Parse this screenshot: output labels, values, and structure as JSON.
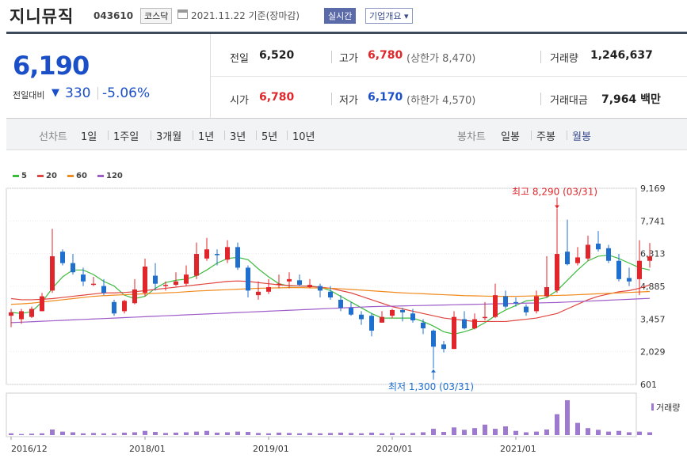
{
  "header": {
    "company": "지니뮤직",
    "code": "043610",
    "market": "코스닥",
    "date_basis": "2021.11.22  기준(장마감)",
    "realtime_button": "실시간",
    "overview_button": "기업개요 ▾"
  },
  "price": {
    "current": "6,190",
    "change_label": "전일대비",
    "change_value": "330",
    "change_pct": "-5.06%",
    "direction_icon": "down-triangle-icon"
  },
  "stats": {
    "prev_close": {
      "label": "전일",
      "value": "6,520"
    },
    "high": {
      "label": "고가",
      "value": "6,780",
      "sub": "(상한가 8,470)"
    },
    "volume": {
      "label": "거래량",
      "value": "1,246,637"
    },
    "open": {
      "label": "시가",
      "value": "6,780"
    },
    "low": {
      "label": "저가",
      "value": "6,170",
      "sub": "(하한가 4,570)"
    },
    "amount": {
      "label": "거래대금",
      "value": "7,964 백만"
    }
  },
  "periods": {
    "line_label": "선차트",
    "line_items": [
      "1일",
      "1주일",
      "3개월",
      "1년",
      "3년",
      "5년",
      "10년"
    ],
    "candle_label": "봉차트",
    "candle_items": [
      "일봉",
      "주봉",
      "월봉"
    ],
    "active_candle": "월봉"
  },
  "colors": {
    "up": "#e0262b",
    "down": "#1f6fcf",
    "ma5": "#3dbb3d",
    "ma20": "#e0453f",
    "ma60": "#f08a1c",
    "ma120": "#9e5cc8",
    "volume": "#9d7ad0"
  },
  "chart_data": {
    "type": "candlestick",
    "interval": "monthly",
    "legend": [
      "5",
      "20",
      "60",
      "120"
    ],
    "y_ticks": [
      "9,169",
      "7,741",
      "6,313",
      "4,885",
      "3,457",
      "2,029",
      "601"
    ],
    "ylim": [
      601,
      9169
    ],
    "x_ticks": [
      "2016/12",
      "2018/01",
      "2019/01",
      "2020/01",
      "2021/01"
    ],
    "volume_label": "거래량",
    "annotations": {
      "max_text": "최고 8,290 (03/31)",
      "max_value": 8290,
      "min_text": "최저 1,300 (03/31)",
      "min_value": 1300
    },
    "candles": [
      [
        3600,
        3750,
        3100,
        3900
      ],
      [
        3450,
        3800,
        3250,
        3900
      ],
      [
        3550,
        3900,
        3500,
        4000
      ],
      [
        3800,
        4450,
        3800,
        4600
      ],
      [
        4700,
        6200,
        4600,
        7400
      ],
      [
        6400,
        5900,
        5800,
        6500
      ],
      [
        5900,
        5500,
        5400,
        6300
      ],
      [
        5400,
        5100,
        4900,
        5700
      ],
      [
        5000,
        5000,
        4900,
        5300
      ],
      [
        4900,
        4600,
        4500,
        5200
      ],
      [
        4200,
        3700,
        3600,
        4300
      ],
      [
        3800,
        4250,
        3700,
        4300
      ],
      [
        4150,
        4750,
        4100,
        5200
      ],
      [
        4600,
        5750,
        4450,
        6100
      ],
      [
        5350,
        5000,
        4700,
        5900
      ],
      [
        4900,
        4950,
        4700,
        5100
      ],
      [
        4950,
        5100,
        4900,
        5500
      ],
      [
        5000,
        5400,
        4900,
        5800
      ],
      [
        5350,
        6300,
        5200,
        6800
      ],
      [
        6100,
        6500,
        6000,
        7000
      ],
      [
        6300,
        6250,
        5800,
        6500
      ],
      [
        6050,
        6600,
        5900,
        6900
      ],
      [
        6600,
        5700,
        5600,
        6800
      ],
      [
        5700,
        4700,
        4400,
        5800
      ],
      [
        4500,
        4650,
        4300,
        5100
      ],
      [
        4650,
        4850,
        4550,
        5200
      ],
      [
        5000,
        5000,
        4800,
        5400
      ],
      [
        5100,
        5200,
        4800,
        5500
      ],
      [
        5150,
        4950,
        4900,
        5400
      ],
      [
        4850,
        4950,
        4800,
        5200
      ],
      [
        4900,
        4700,
        4400,
        5000
      ],
      [
        4650,
        4400,
        4300,
        4900
      ],
      [
        4300,
        3950,
        3800,
        4500
      ],
      [
        3950,
        3650,
        3600,
        4200
      ],
      [
        3650,
        3450,
        3200,
        3800
      ],
      [
        3600,
        2950,
        2700,
        3700
      ],
      [
        3300,
        3550,
        3300,
        3800
      ],
      [
        3600,
        3850,
        3500,
        3900
      ],
      [
        3850,
        3750,
        3350,
        3950
      ],
      [
        3700,
        3400,
        3300,
        3900
      ],
      [
        3300,
        3050,
        2800,
        3450
      ],
      [
        2950,
        2250,
        1300,
        3000
      ],
      [
        2350,
        2150,
        2000,
        2500
      ],
      [
        2150,
        3550,
        2150,
        3800
      ],
      [
        3450,
        3050,
        3000,
        3800
      ],
      [
        3050,
        3450,
        3000,
        3700
      ],
      [
        3500,
        3550,
        3400,
        4200
      ],
      [
        3550,
        4500,
        3500,
        5000
      ],
      [
        4450,
        4000,
        3900,
        4700
      ],
      [
        4200,
        4150,
        4000,
        4400
      ],
      [
        4000,
        3750,
        3600,
        4100
      ],
      [
        3800,
        4450,
        3700,
        4700
      ],
      [
        4450,
        4850,
        4400,
        6200
      ],
      [
        4700,
        6300,
        4600,
        8290
      ],
      [
        6400,
        5850,
        5800,
        7800
      ],
      [
        5900,
        6150,
        5800,
        6600
      ],
      [
        6100,
        6700,
        6000,
        7100
      ],
      [
        6750,
        6500,
        6400,
        7300
      ],
      [
        6550,
        6000,
        5900,
        6700
      ],
      [
        6000,
        5200,
        5100,
        6300
      ],
      [
        5250,
        5100,
        4900,
        5700
      ],
      [
        5200,
        6000,
        4500,
        6900
      ],
      [
        6000,
        6190,
        5700,
        6780
      ]
    ],
    "ma_series": {
      "5": [
        3750,
        3700,
        3780,
        4200,
        4800,
        5300,
        5600,
        5600,
        5400,
        5100,
        4900,
        4500,
        4350,
        4450,
        4800,
        5050,
        5150,
        5200,
        5350,
        5600,
        5900,
        6100,
        6150,
        6050,
        5650,
        5300,
        5000,
        4900,
        4900,
        4900,
        4850,
        4700,
        4450,
        4200,
        3950,
        3700,
        3500,
        3500,
        3500,
        3500,
        3350,
        3150,
        2900,
        2800,
        2900,
        3050,
        3300,
        3600,
        3850,
        4050,
        4250,
        4300,
        4400,
        4700,
        5150,
        5600,
        6000,
        6200,
        6250,
        6100,
        5900,
        5700,
        5600
      ],
      "20": [
        4350,
        4300,
        4300,
        4320,
        4350,
        4400,
        4450,
        4500,
        4550,
        4600,
        4600,
        4620,
        4650,
        4700,
        4750,
        4800,
        4850,
        4900,
        4950,
        5000,
        5050,
        5100,
        5120,
        5100,
        5050,
        5000,
        4950,
        4920,
        4900,
        4880,
        4850,
        4800,
        4700,
        4600,
        4450,
        4300,
        4150,
        4000,
        3900,
        3800,
        3700,
        3600,
        3500,
        3450,
        3400,
        3350,
        3350,
        3350,
        3350,
        3400,
        3450,
        3500,
        3600,
        3700,
        3900,
        4100,
        4300,
        4450,
        4550,
        4650,
        4700,
        4800,
        4950
      ],
      "60": [
        4100,
        4120,
        4150,
        4200,
        4250,
        4300,
        4350,
        4400,
        4450,
        4480,
        4500,
        4520,
        4540,
        4560,
        4580,
        4600,
        4620,
        4650,
        4680,
        4700,
        4720,
        4740,
        4760,
        4780,
        4800,
        4810,
        4820,
        4830,
        4830,
        4820,
        4810,
        4800,
        4780,
        4750,
        4720,
        4690,
        4660,
        4630,
        4600,
        4580,
        4560,
        4540,
        4520,
        4500,
        4480,
        4470,
        4460,
        4450,
        4450,
        4450,
        4460,
        4470,
        4480,
        4490,
        4500,
        4520,
        4540,
        4560,
        4580,
        4600,
        4620,
        4640,
        4660
      ],
      "120": [
        3300,
        3320,
        3340,
        3360,
        3380,
        3400,
        3420,
        3440,
        3460,
        3480,
        3500,
        3520,
        3540,
        3560,
        3580,
        3600,
        3620,
        3640,
        3660,
        3680,
        3700,
        3720,
        3740,
        3760,
        3780,
        3800,
        3820,
        3840,
        3860,
        3880,
        3900,
        3920,
        3940,
        3960,
        3980,
        4000,
        4010,
        4020,
        4030,
        4040,
        4050,
        4060,
        4070,
        4080,
        4090,
        4100,
        4110,
        4120,
        4130,
        4140,
        4150,
        4160,
        4170,
        4180,
        4200,
        4220,
        4240,
        4260,
        4280,
        4300,
        4320,
        4340,
        4360
      ]
    },
    "volume": [
      0.05,
      0.03,
      0.04,
      0.05,
      0.16,
      0.1,
      0.08,
      0.05,
      0.06,
      0.05,
      0.05,
      0.07,
      0.08,
      0.12,
      0.09,
      0.06,
      0.07,
      0.08,
      0.1,
      0.12,
      0.07,
      0.08,
      0.1,
      0.09,
      0.06,
      0.05,
      0.07,
      0.06,
      0.05,
      0.06,
      0.05,
      0.06,
      0.07,
      0.06,
      0.05,
      0.07,
      0.05,
      0.06,
      0.05,
      0.06,
      0.08,
      0.18,
      0.09,
      0.22,
      0.15,
      0.2,
      0.3,
      0.18,
      0.25,
      0.12,
      0.08,
      0.1,
      0.16,
      0.6,
      1.0,
      0.35,
      0.2,
      0.15,
      0.1,
      0.12,
      0.08,
      0.1,
      0.08
    ]
  }
}
